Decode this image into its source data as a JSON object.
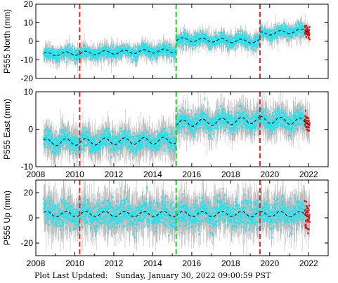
{
  "footer": {
    "label": "Plot Last Updated:",
    "value": "Sunday, January 30, 2022 09:00:59 PST"
  },
  "chart_data": [
    {
      "type": "scatter",
      "ylabel": "P555 North (mm)",
      "xlim": [
        2008,
        2023
      ],
      "ylim": [
        -20,
        20
      ],
      "x_ticks": [
        2008,
        2010,
        2012,
        2014,
        2016,
        2018,
        2020,
        2022
      ],
      "y_ticks": [
        -20,
        -10,
        0,
        10,
        20
      ],
      "x_tick_labels_shown": false,
      "event_lines": [
        {
          "x": 2010.25,
          "color": "#ee2222"
        },
        {
          "x": 2015.2,
          "color": "#22cc22"
        },
        {
          "x": 2019.5,
          "color": "#ee2222"
        }
      ],
      "series": [
        {
          "role": "daily positions",
          "color": "#22e4ef",
          "error_color": "#bbbbbb",
          "recent_color": "#dd1111"
        },
        {
          "role": "model fit",
          "color": "#000000",
          "dashed": true
        }
      ],
      "trend_segments": [
        {
          "x": [
            2008.4,
            2015.2
          ],
          "y": [
            -7,
            -5
          ]
        },
        {
          "x": [
            2015.2,
            2019.5
          ],
          "y": [
            1,
            0
          ]
        },
        {
          "x": [
            2019.5,
            2022.05
          ],
          "y": [
            4,
            6
          ]
        }
      ],
      "seasonal_amplitude": 1.0,
      "scatter_sd": 1.6,
      "error_sd": 3.5
    },
    {
      "type": "scatter",
      "ylabel": "P555 East (mm)",
      "xlim": [
        2008,
        2023
      ],
      "ylim": [
        -10,
        10
      ],
      "x_ticks": [
        2008,
        2010,
        2012,
        2014,
        2016,
        2018,
        2020,
        2022
      ],
      "y_ticks": [
        -10,
        0,
        10
      ],
      "x_tick_labels_shown": true,
      "event_lines": [
        {
          "x": 2010.25,
          "color": "#ee2222"
        },
        {
          "x": 2015.2,
          "color": "#22cc22"
        },
        {
          "x": 2019.5,
          "color": "#ee2222"
        }
      ],
      "series": [
        {
          "role": "daily positions",
          "color": "#22e4ef",
          "error_color": "#bbbbbb",
          "recent_color": "#dd1111"
        },
        {
          "role": "model fit",
          "color": "#000000",
          "dashed": true
        }
      ],
      "trend_segments": [
        {
          "x": [
            2008.4,
            2015.2
          ],
          "y": [
            -3.5,
            -3
          ]
        },
        {
          "x": [
            2015.2,
            2019.5
          ],
          "y": [
            1.5,
            2.5
          ]
        },
        {
          "x": [
            2019.5,
            2022.05
          ],
          "y": [
            2.5,
            2
          ]
        }
      ],
      "seasonal_amplitude": 0.9,
      "scatter_sd": 1.3,
      "error_sd": 3.2
    },
    {
      "type": "scatter",
      "ylabel": "P555 Up (mm)",
      "xlim": [
        2008,
        2023
      ],
      "ylim": [
        -30,
        30
      ],
      "x_ticks": [
        2008,
        2010,
        2012,
        2014,
        2016,
        2018,
        2020,
        2022
      ],
      "y_ticks": [
        -20,
        0,
        20
      ],
      "x_tick_labels_shown": true,
      "event_lines": [
        {
          "x": 2010.25,
          "color": "#ee2222"
        },
        {
          "x": 2015.2,
          "color": "#22cc22"
        },
        {
          "x": 2019.5,
          "color": "#ee2222"
        }
      ],
      "series": [
        {
          "role": "daily positions",
          "color": "#22e4ef",
          "error_color": "#bbbbbb",
          "recent_color": "#dd1111"
        },
        {
          "role": "model fit",
          "color": "#000000",
          "dashed": true
        }
      ],
      "trend_segments": [
        {
          "x": [
            2008.4,
            2015.2
          ],
          "y": [
            3,
            3
          ]
        },
        {
          "x": [
            2015.2,
            2019.5
          ],
          "y": [
            3,
            3
          ]
        },
        {
          "x": [
            2019.5,
            2022.05
          ],
          "y": [
            3,
            3
          ]
        }
      ],
      "seasonal_amplitude": 2.2,
      "scatter_sd": 5.5,
      "error_sd": 12
    }
  ]
}
